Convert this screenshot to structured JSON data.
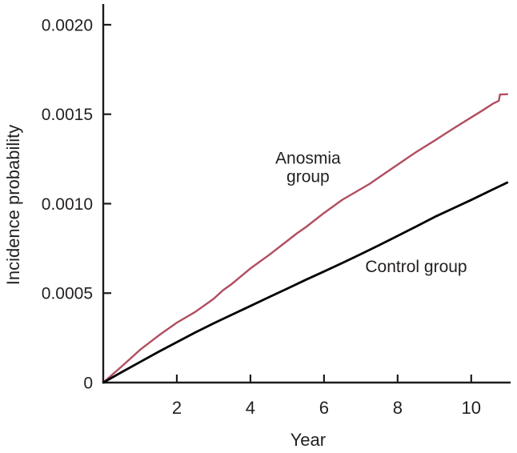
{
  "figure": {
    "background": "#ffffff",
    "axis_color": "#1c1c1e",
    "text_color": "#231f20"
  },
  "chart_data": {
    "type": "line",
    "title": "",
    "xlabel": "Year",
    "ylabel": "Incidence probability",
    "xlim": [
      0,
      11.07
    ],
    "ylim": [
      0,
      0.002116
    ],
    "grid": false,
    "legend": "inline-annotations",
    "x_ticks": {
      "values": [
        2,
        4,
        6,
        8,
        10
      ],
      "labels": [
        "2",
        "4",
        "6",
        "8",
        "10"
      ]
    },
    "y_ticks": {
      "values": [
        0,
        0.0005,
        0.001,
        0.0015,
        0.002
      ],
      "labels": [
        "0",
        "0.0005",
        "0.0010",
        "0.0015",
        "0.0020"
      ]
    },
    "series": [
      {
        "name": "Anosmia group",
        "color": "#b14d60",
        "stroke_width": 2.4,
        "x": [
          0,
          0.5,
          1,
          1.5,
          2,
          2.5,
          3,
          3.25,
          3.5,
          4,
          4.5,
          5,
          5.25,
          5.5,
          6,
          6.5,
          7,
          7.25,
          7.5,
          8,
          8.5,
          9,
          9.25,
          9.5,
          10,
          10.3,
          10.6,
          10.75,
          10.78,
          11
        ],
        "y": [
          0,
          9e-05,
          0.000183,
          0.000262,
          0.000335,
          0.000395,
          0.000468,
          0.000515,
          0.000552,
          0.000638,
          0.000712,
          0.000792,
          0.000832,
          0.000868,
          0.000948,
          0.001022,
          0.001082,
          0.001112,
          0.001148,
          0.001218,
          0.001288,
          0.001352,
          0.001385,
          0.001418,
          0.001482,
          0.00152,
          0.00156,
          0.001575,
          0.00161,
          0.001612
        ]
      },
      {
        "name": "Control group",
        "color": "#000000",
        "stroke_width": 2.8,
        "x": [
          0,
          0.5,
          1,
          1.5,
          2,
          2.5,
          3,
          3.5,
          4,
          4.5,
          5,
          5.5,
          6,
          6.5,
          7,
          7.5,
          8,
          8.5,
          9,
          9.5,
          10,
          10.5,
          11
        ],
        "y": [
          0,
          5.8e-05,
          0.000115,
          0.000172,
          0.000226,
          0.00028,
          0.000331,
          0.00038,
          0.000428,
          0.000477,
          0.000525,
          0.000574,
          0.000621,
          0.000669,
          0.000718,
          0.000768,
          0.00082,
          0.000872,
          0.000925,
          0.000973,
          0.001021,
          0.001071,
          0.00112
        ]
      }
    ],
    "annotations": [
      {
        "lines": [
          "Anosmia",
          "group"
        ],
        "x": 5.565,
        "y": 0.001203
      },
      {
        "lines": [
          "Control group"
        ],
        "x": 8.504,
        "y": 0.000649
      }
    ]
  }
}
